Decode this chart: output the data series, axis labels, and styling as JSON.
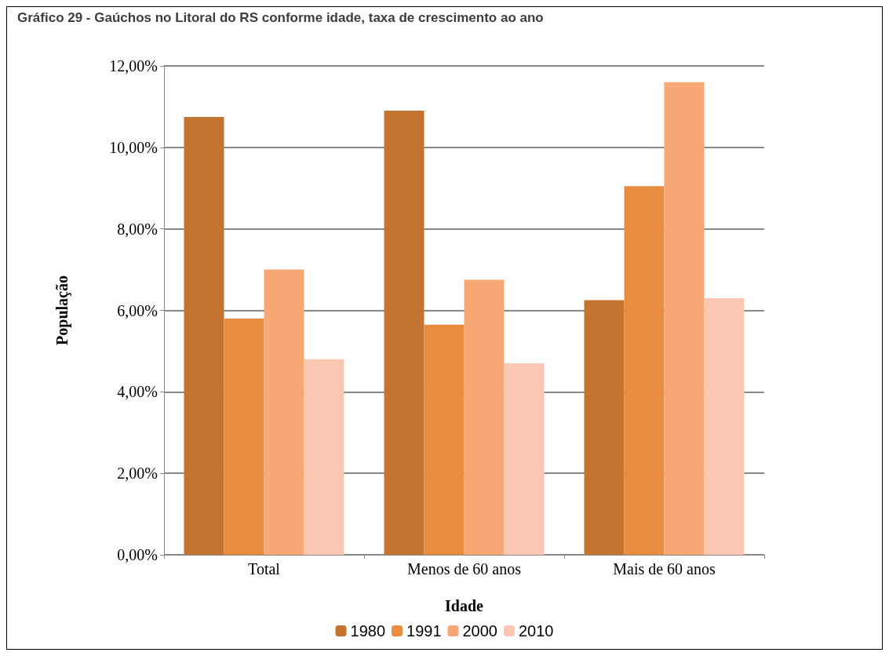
{
  "chart_data": {
    "type": "bar",
    "title": "Gráfico 29 - Gaúchos no Litoral do RS conforme idade, taxa de crescimento ao ano",
    "xlabel": "Idade",
    "ylabel": "População",
    "categories": [
      "Total",
      "Menos de 60 anos",
      "Mais de 60 anos"
    ],
    "series": [
      {
        "name": "1980",
        "color": "#c47431",
        "values": [
          10.75,
          10.9,
          6.25
        ]
      },
      {
        "name": "1991",
        "color": "#e88c40",
        "values": [
          5.8,
          5.65,
          9.05
        ]
      },
      {
        "name": "2000",
        "color": "#f8a874",
        "values": [
          7.0,
          6.75,
          11.6
        ]
      },
      {
        "name": "2010",
        "color": "#fac8b2",
        "values": [
          4.8,
          4.7,
          6.3
        ]
      }
    ],
    "ylim": [
      0,
      12
    ],
    "yticks": [
      {
        "value": 0,
        "label": "0,00%"
      },
      {
        "value": 2,
        "label": "2,00%"
      },
      {
        "value": 4,
        "label": "4,00%"
      },
      {
        "value": 6,
        "label": "6,00%"
      },
      {
        "value": 8,
        "label": "8,00%"
      },
      {
        "value": 10,
        "label": "10,00%"
      },
      {
        "value": 12,
        "label": "12,00%"
      }
    ],
    "grid": "y",
    "legend": "bottom"
  }
}
